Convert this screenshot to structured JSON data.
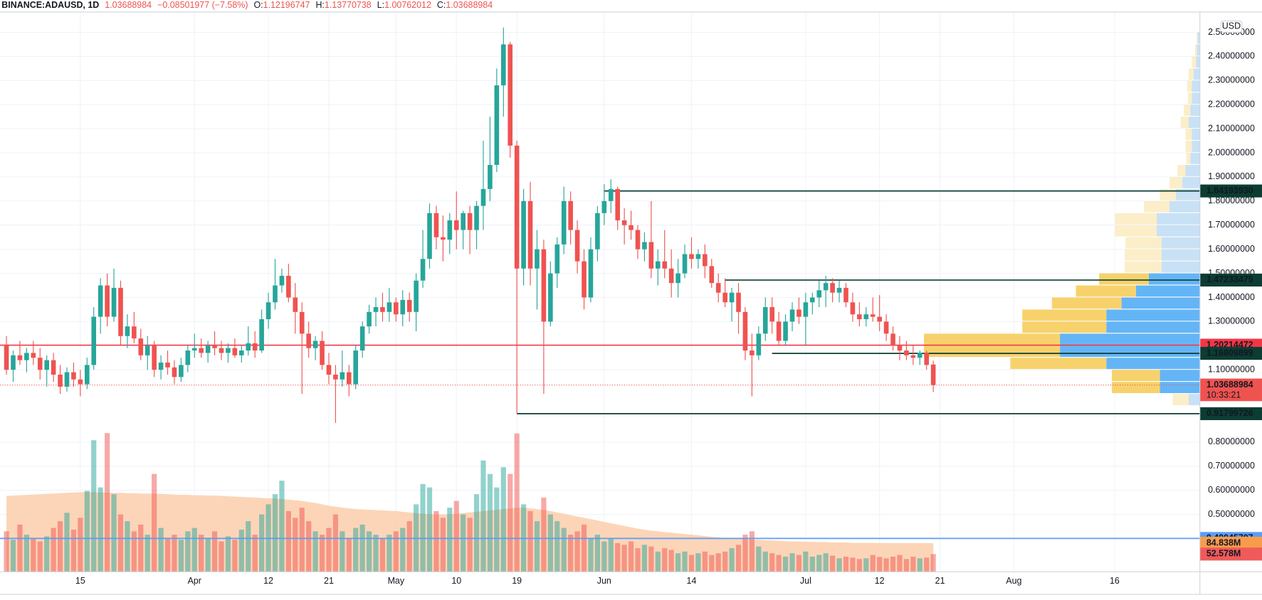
{
  "chart_data": {
    "type": "candlestick",
    "symbol": "BINANCE:ADAUSD, 1D",
    "change": "−0.08501977 (−7.58%)",
    "ohlc_labels": [
      "O:",
      "H:",
      "L:",
      "C:"
    ],
    "currency": "USD",
    "countdown": "10:33:21",
    "up_color": "#26a69a",
    "down_color": "#ef5350",
    "candles": [
      [
        1.2,
        1.24,
        1.08,
        1.1
      ],
      [
        1.1,
        1.18,
        1.05,
        1.16
      ],
      [
        1.16,
        1.22,
        1.12,
        1.14
      ],
      [
        1.14,
        1.19,
        1.09,
        1.17
      ],
      [
        1.17,
        1.22,
        1.12,
        1.15
      ],
      [
        1.15,
        1.19,
        1.06,
        1.1
      ],
      [
        1.1,
        1.16,
        1.03,
        1.14
      ],
      [
        1.14,
        1.17,
        1.05,
        1.08
      ],
      [
        1.08,
        1.12,
        1.0,
        1.03
      ],
      [
        1.03,
        1.11,
        1.01,
        1.09
      ],
      [
        1.09,
        1.13,
        1.03,
        1.06
      ],
      [
        1.06,
        1.1,
        0.99,
        1.04
      ],
      [
        1.04,
        1.15,
        1.02,
        1.12
      ],
      [
        1.12,
        1.36,
        1.1,
        1.32
      ],
      [
        1.32,
        1.48,
        1.25,
        1.45
      ],
      [
        1.45,
        1.5,
        1.28,
        1.32
      ],
      [
        1.32,
        1.52,
        1.3,
        1.44
      ],
      [
        1.44,
        1.47,
        1.2,
        1.24
      ],
      [
        1.24,
        1.33,
        1.19,
        1.28
      ],
      [
        1.28,
        1.34,
        1.21,
        1.23
      ],
      [
        1.23,
        1.27,
        1.14,
        1.16
      ],
      [
        1.16,
        1.24,
        1.1,
        1.2
      ],
      [
        1.2,
        1.22,
        1.07,
        1.1
      ],
      [
        1.1,
        1.16,
        1.06,
        1.13
      ],
      [
        1.13,
        1.18,
        1.08,
        1.11
      ],
      [
        1.11,
        1.14,
        1.04,
        1.07
      ],
      [
        1.07,
        1.15,
        1.05,
        1.12
      ],
      [
        1.12,
        1.2,
        1.09,
        1.18
      ],
      [
        1.18,
        1.25,
        1.15,
        1.19
      ],
      [
        1.19,
        1.23,
        1.15,
        1.17
      ],
      [
        1.17,
        1.22,
        1.13,
        1.2
      ],
      [
        1.2,
        1.26,
        1.16,
        1.19
      ],
      [
        1.19,
        1.22,
        1.14,
        1.17
      ],
      [
        1.17,
        1.21,
        1.13,
        1.19
      ],
      [
        1.19,
        1.23,
        1.15,
        1.16
      ],
      [
        1.16,
        1.2,
        1.13,
        1.18
      ],
      [
        1.18,
        1.28,
        1.16,
        1.21
      ],
      [
        1.21,
        1.26,
        1.15,
        1.18
      ],
      [
        1.18,
        1.35,
        1.17,
        1.31
      ],
      [
        1.31,
        1.42,
        1.27,
        1.38
      ],
      [
        1.38,
        1.56,
        1.35,
        1.45
      ],
      [
        1.45,
        1.52,
        1.42,
        1.49
      ],
      [
        1.49,
        1.54,
        1.38,
        1.4
      ],
      [
        1.4,
        1.46,
        1.25,
        1.34
      ],
      [
        1.34,
        1.38,
        1.0,
        1.25
      ],
      [
        1.25,
        1.3,
        1.15,
        1.19
      ],
      [
        1.19,
        1.24,
        1.14,
        1.22
      ],
      [
        1.22,
        1.26,
        1.1,
        1.12
      ],
      [
        1.12,
        1.17,
        1.04,
        1.08
      ],
      [
        1.08,
        1.12,
        0.88,
        1.06
      ],
      [
        1.06,
        1.18,
        1.03,
        1.09
      ],
      [
        1.09,
        1.12,
        0.99,
        1.04
      ],
      [
        1.04,
        1.2,
        1.02,
        1.18
      ],
      [
        1.18,
        1.3,
        1.15,
        1.28
      ],
      [
        1.28,
        1.37,
        1.25,
        1.34
      ],
      [
        1.34,
        1.4,
        1.28,
        1.36
      ],
      [
        1.36,
        1.42,
        1.3,
        1.34
      ],
      [
        1.34,
        1.44,
        1.3,
        1.38
      ],
      [
        1.38,
        1.4,
        1.3,
        1.33
      ],
      [
        1.33,
        1.43,
        1.28,
        1.39
      ],
      [
        1.39,
        1.42,
        1.3,
        1.34
      ],
      [
        1.34,
        1.5,
        1.26,
        1.47
      ],
      [
        1.47,
        1.68,
        1.44,
        1.56
      ],
      [
        1.56,
        1.79,
        1.52,
        1.75
      ],
      [
        1.75,
        1.78,
        1.6,
        1.65
      ],
      [
        1.65,
        1.74,
        1.55,
        1.64
      ],
      [
        1.64,
        1.75,
        1.58,
        1.72
      ],
      [
        1.72,
        1.84,
        1.6,
        1.68
      ],
      [
        1.68,
        1.76,
        1.6,
        1.75
      ],
      [
        1.75,
        1.78,
        1.58,
        1.68
      ],
      [
        1.68,
        1.8,
        1.6,
        1.78
      ],
      [
        1.78,
        2.05,
        1.68,
        1.85
      ],
      [
        1.85,
        2.15,
        1.8,
        1.95
      ],
      [
        1.95,
        2.35,
        1.92,
        2.28
      ],
      [
        2.28,
        2.52,
        2.15,
        2.45
      ],
      [
        2.45,
        2.46,
        1.98,
        2.03
      ],
      [
        2.03,
        2.05,
        0.92,
        1.52
      ],
      [
        1.52,
        1.85,
        1.45,
        1.8
      ],
      [
        1.8,
        1.88,
        1.45,
        1.52
      ],
      [
        1.52,
        1.68,
        1.35,
        1.6
      ],
      [
        1.6,
        1.64,
        1.0,
        1.3
      ],
      [
        1.3,
        1.55,
        1.28,
        1.5
      ],
      [
        1.5,
        1.65,
        1.44,
        1.62
      ],
      [
        1.62,
        1.86,
        1.58,
        1.8
      ],
      [
        1.8,
        1.84,
        1.62,
        1.68
      ],
      [
        1.68,
        1.72,
        1.5,
        1.55
      ],
      [
        1.55,
        1.6,
        1.35,
        1.4
      ],
      [
        1.4,
        1.65,
        1.38,
        1.6
      ],
      [
        1.6,
        1.78,
        1.55,
        1.75
      ],
      [
        1.75,
        1.87,
        1.7,
        1.8
      ],
      [
        1.8,
        1.89,
        1.75,
        1.85
      ],
      [
        1.85,
        1.86,
        1.68,
        1.72
      ],
      [
        1.72,
        1.77,
        1.62,
        1.7
      ],
      [
        1.7,
        1.76,
        1.64,
        1.68
      ],
      [
        1.68,
        1.7,
        1.56,
        1.6
      ],
      [
        1.6,
        1.67,
        1.55,
        1.63
      ],
      [
        1.63,
        1.8,
        1.48,
        1.52
      ],
      [
        1.52,
        1.6,
        1.45,
        1.55
      ],
      [
        1.55,
        1.68,
        1.48,
        1.52
      ],
      [
        1.52,
        1.6,
        1.4,
        1.46
      ],
      [
        1.46,
        1.56,
        1.4,
        1.5
      ],
      [
        1.5,
        1.62,
        1.48,
        1.58
      ],
      [
        1.58,
        1.65,
        1.52,
        1.56
      ],
      [
        1.56,
        1.6,
        1.52,
        1.58
      ],
      [
        1.58,
        1.62,
        1.48,
        1.53
      ],
      [
        1.53,
        1.56,
        1.44,
        1.46
      ],
      [
        1.46,
        1.5,
        1.38,
        1.42
      ],
      [
        1.42,
        1.48,
        1.36,
        1.38
      ],
      [
        1.38,
        1.44,
        1.3,
        1.42
      ],
      [
        1.42,
        1.46,
        1.25,
        1.34
      ],
      [
        1.34,
        1.36,
        1.14,
        1.18
      ],
      [
        1.18,
        1.25,
        0.99,
        1.16
      ],
      [
        1.16,
        1.28,
        1.14,
        1.25
      ],
      [
        1.25,
        1.4,
        1.22,
        1.36
      ],
      [
        1.36,
        1.4,
        1.25,
        1.3
      ],
      [
        1.3,
        1.34,
        1.2,
        1.22
      ],
      [
        1.22,
        1.33,
        1.2,
        1.3
      ],
      [
        1.3,
        1.38,
        1.26,
        1.35
      ],
      [
        1.35,
        1.4,
        1.29,
        1.32
      ],
      [
        1.32,
        1.42,
        1.2,
        1.38
      ],
      [
        1.38,
        1.42,
        1.33,
        1.4
      ],
      [
        1.4,
        1.47,
        1.36,
        1.43
      ],
      [
        1.43,
        1.49,
        1.36,
        1.46
      ],
      [
        1.46,
        1.48,
        1.38,
        1.42
      ],
      [
        1.42,
        1.47,
        1.38,
        1.44
      ],
      [
        1.44,
        1.46,
        1.36,
        1.38
      ],
      [
        1.38,
        1.42,
        1.3,
        1.33
      ],
      [
        1.33,
        1.38,
        1.28,
        1.31
      ],
      [
        1.31,
        1.36,
        1.28,
        1.33
      ],
      [
        1.33,
        1.4,
        1.3,
        1.32
      ],
      [
        1.32,
        1.41,
        1.26,
        1.3
      ],
      [
        1.3,
        1.33,
        1.22,
        1.25
      ],
      [
        1.25,
        1.28,
        1.18,
        1.2
      ],
      [
        1.2,
        1.24,
        1.14,
        1.18
      ],
      [
        1.18,
        1.22,
        1.14,
        1.16
      ],
      [
        1.16,
        1.2,
        1.12,
        1.15
      ],
      [
        1.15,
        1.18,
        1.12,
        1.17
      ],
      [
        1.17,
        1.18,
        1.1,
        1.12
      ],
      [
        1.12196747,
        1.13770738,
        1.00762012,
        1.03688984
      ]
    ],
    "volume": [
      120,
      95,
      140,
      110,
      100,
      90,
      105,
      130,
      150,
      175,
      125,
      160,
      240,
      390,
      250,
      411,
      230,
      170,
      150,
      120,
      140,
      110,
      290,
      130,
      100,
      110,
      95,
      120,
      130,
      110,
      100,
      120,
      90,
      105,
      95,
      125,
      150,
      110,
      170,
      200,
      230,
      270,
      180,
      160,
      190,
      150,
      120,
      110,
      130,
      170,
      120,
      100,
      130,
      140,
      120,
      110,
      100,
      110,
      120,
      130,
      150,
      200,
      260,
      250,
      180,
      160,
      190,
      210,
      170,
      160,
      230,
      330,
      290,
      250,
      310,
      290,
      410,
      200,
      180,
      150,
      220,
      170,
      150,
      130,
      110,
      120,
      140,
      100,
      110,
      90,
      100,
      85,
      80,
      90,
      70,
      80,
      75,
      60,
      70,
      65,
      55,
      60,
      50,
      55,
      60,
      50,
      55,
      60,
      70,
      80,
      110,
      120,
      75,
      60,
      55,
      50,
      45,
      55,
      50,
      60,
      45,
      50,
      55,
      48,
      40,
      45,
      42,
      38,
      40,
      50,
      44,
      40,
      45,
      50,
      38,
      45,
      40,
      42,
      52.578
    ],
    "volume_label": "52.578M",
    "volume_ma": [
      225,
      226,
      227,
      228,
      229,
      230,
      231,
      232,
      233,
      234,
      235,
      236,
      236,
      236,
      235,
      235,
      234,
      234,
      233,
      233,
      232,
      232,
      231,
      231,
      230,
      229,
      228,
      228,
      227,
      227,
      226,
      226,
      225,
      224,
      223,
      222,
      221,
      220,
      219,
      218,
      217,
      216,
      214,
      212,
      210,
      207,
      204,
      200,
      196,
      193,
      190,
      188,
      186,
      185,
      184,
      183,
      182,
      181,
      180,
      178,
      176,
      174,
      172,
      171,
      170,
      170,
      171,
      172,
      174,
      176,
      178,
      180,
      182,
      184,
      186,
      188,
      190,
      190,
      188,
      186,
      183,
      180,
      176,
      172,
      168,
      164,
      160,
      156,
      152,
      148,
      144,
      140,
      136,
      132,
      128,
      125,
      122,
      120,
      118,
      116,
      114,
      112,
      110,
      108,
      106,
      104,
      102,
      100,
      99,
      98,
      97,
      96,
      95,
      94,
      93,
      92,
      91,
      90,
      90,
      89,
      89,
      88,
      88,
      87,
      87,
      87,
      86,
      86,
      86,
      86,
      85,
      85,
      85,
      85,
      85,
      85,
      85,
      85,
      84.838
    ],
    "volume_ma_label": "84.838M",
    "volume_ylim": [
      0,
      420
    ],
    "xlim": [
      -0.96,
      177.7
    ],
    "ylim": [
      0.262,
      2.584
    ],
    "xticks": [
      {
        "value": 11,
        "label": "15"
      },
      {
        "value": 28,
        "label": "Apr"
      },
      {
        "value": 39,
        "label": "12"
      },
      {
        "value": 48,
        "label": "21"
      },
      {
        "value": 58,
        "label": "May"
      },
      {
        "value": 67,
        "label": "10"
      },
      {
        "value": 76,
        "label": "19"
      },
      {
        "value": 89,
        "label": "Jun"
      },
      {
        "value": 102,
        "label": "14"
      },
      {
        "value": 119,
        "label": "Jul"
      },
      {
        "value": 130,
        "label": "12"
      },
      {
        "value": 139,
        "label": "21"
      },
      {
        "value": 150,
        "label": "Aug"
      },
      {
        "value": 165,
        "label": "16"
      }
    ],
    "yticks": [
      {
        "value": 0.5,
        "label": "0.50000000"
      },
      {
        "value": 0.6,
        "label": "0.60000000"
      },
      {
        "value": 0.7,
        "label": "0.70000000"
      },
      {
        "value": 0.8,
        "label": "0.80000000"
      },
      {
        "value": 1.1,
        "label": "1.10000000"
      },
      {
        "value": 1.3,
        "label": "1.30000000"
      },
      {
        "value": 1.4,
        "label": "1.40000000"
      },
      {
        "value": 1.5,
        "label": "1.50000000"
      },
      {
        "value": 1.6,
        "label": "1.60000000"
      },
      {
        "value": 1.7,
        "label": "1.70000000"
      },
      {
        "value": 1.8,
        "label": "1.80000000"
      },
      {
        "value": 1.9,
        "label": "1.90000000"
      },
      {
        "value": 2.0,
        "label": "2.00000000"
      },
      {
        "value": 2.1,
        "label": "2.10000000"
      },
      {
        "value": 2.2,
        "label": "2.20000000"
      },
      {
        "value": 2.3,
        "label": "2.30000000"
      },
      {
        "value": 2.4,
        "label": "2.40000000"
      },
      {
        "value": 2.5,
        "label": "2.50000000"
      }
    ],
    "grid": true,
    "levels": [
      {
        "value": 1.8419393,
        "label": "1.84193930",
        "start": 89,
        "color": "#0b3d33"
      },
      {
        "value": 1.47233475,
        "label": "1.47233475",
        "start": 107,
        "color": "#0b3d33"
      },
      {
        "value": 1.20214472,
        "label": "1.20214472",
        "start": -1,
        "color": "#f23645"
      },
      {
        "value": 1.16809899,
        "label": "1.16809899",
        "start": 114,
        "color": "#0b3d33"
      },
      {
        "value": 0.91799726,
        "label": "0.91799726",
        "start": 76,
        "color": "#0b3d33"
      },
      {
        "value": 0.40045707,
        "label": "0.40045707",
        "start": -1,
        "color": "#5b9cf6"
      }
    ],
    "volume_profile": {
      "bins": [
        0.95,
        1.0,
        1.05,
        1.1,
        1.15,
        1.2,
        1.25,
        1.3,
        1.35,
        1.4,
        1.45,
        1.5,
        1.55,
        1.6,
        1.65,
        1.7,
        1.75,
        1.8,
        1.85,
        1.9,
        1.95,
        2.0,
        2.05,
        2.1,
        2.15,
        2.2,
        2.25,
        2.3,
        2.35,
        2.4,
        2.45,
        2.5
      ],
      "up": [
        14,
        50,
        50,
        117,
        175,
        175,
        117,
        117,
        98,
        80,
        64,
        48,
        48,
        48,
        54,
        54,
        38,
        30,
        22,
        18,
        12,
        10,
        10,
        14,
        12,
        10,
        10,
        8,
        5,
        4,
        3
      ],
      "down": [
        20,
        60,
        60,
        120,
        170,
        170,
        105,
        105,
        87,
        75,
        62,
        46,
        46,
        45,
        52,
        52,
        32,
        20,
        16,
        10,
        5,
        8,
        8,
        10,
        8,
        5,
        6,
        6,
        5,
        2,
        1
      ],
      "xlim": [
        0,
        1500
      ],
      "value_area": [
        1.0,
        1.5
      ],
      "up_color": "#64b5f6",
      "down_color": "#f7d26c",
      "up_faded": "#c8e1f5",
      "down_faded": "#fbeec8"
    }
  }
}
